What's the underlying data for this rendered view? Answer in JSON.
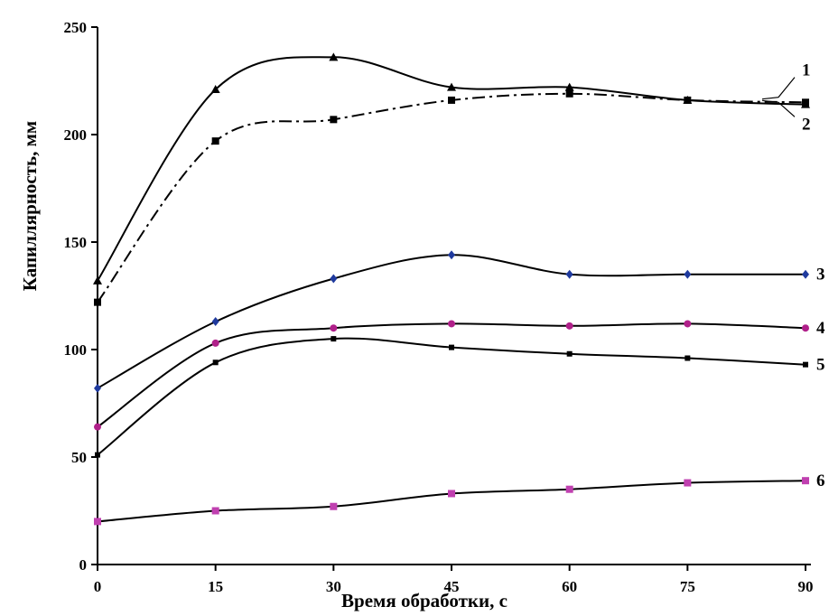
{
  "chart_data": {
    "type": "line",
    "xlabel": "Время обработки, с",
    "ylabel": "Капиллярность, мм",
    "xlim": [
      0,
      90
    ],
    "ylim": [
      0,
      250
    ],
    "x_ticks": [
      "0",
      "15",
      "30",
      "45",
      "60",
      "75",
      "90"
    ],
    "y_ticks": [
      "0",
      "50",
      "100",
      "150",
      "200",
      "250"
    ],
    "grid": false,
    "x": [
      0,
      15,
      30,
      45,
      60,
      75,
      90
    ],
    "series": [
      {
        "name": "1",
        "values": [
          132,
          221,
          236,
          222,
          222,
          216,
          214
        ],
        "marker": "triangle",
        "line": "solid",
        "marker_color": "#000000"
      },
      {
        "name": "2",
        "values": [
          122,
          197,
          207,
          216,
          219,
          216,
          215
        ],
        "marker": "square",
        "line": "dashdot",
        "marker_color": "#000000"
      },
      {
        "name": "3",
        "values": [
          82,
          113,
          133,
          144,
          135,
          135,
          135
        ],
        "marker": "diamond",
        "line": "solid",
        "marker_color": "#1f3a9e"
      },
      {
        "name": "4",
        "values": [
          64,
          103,
          110,
          112,
          111,
          112,
          110
        ],
        "marker": "circle",
        "line": "solid",
        "marker_color": "#b0208a"
      },
      {
        "name": "5",
        "values": [
          51,
          94,
          105,
          101,
          98,
          96,
          93
        ],
        "marker": "small-square",
        "line": "solid",
        "marker_color": "#000000"
      },
      {
        "name": "6",
        "values": [
          20,
          25,
          27,
          33,
          35,
          38,
          39
        ],
        "marker": "square",
        "line": "solid",
        "marker_color": "#c040b0"
      }
    ]
  }
}
